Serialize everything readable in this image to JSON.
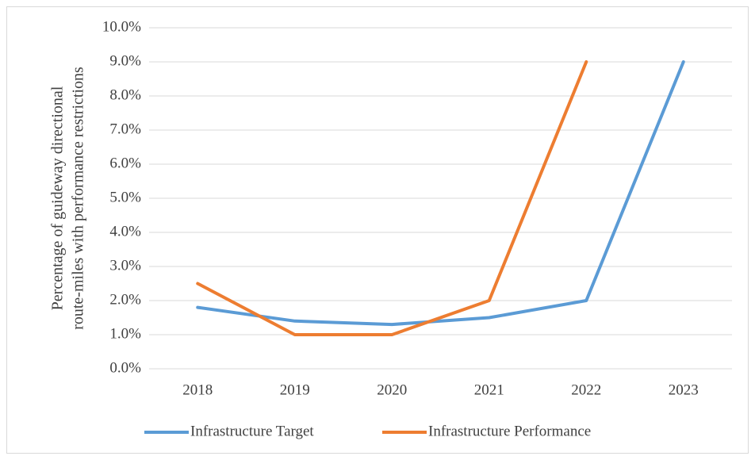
{
  "chart_data": {
    "type": "line",
    "ylabel": [
      "Percentage of guideway directional",
      "route-miles with performance restrictions"
    ],
    "categories": [
      "2018",
      "2019",
      "2020",
      "2021",
      "2022",
      "2023"
    ],
    "series": [
      {
        "name": "Infrastructure Target",
        "color": "#5b9bd5",
        "values": [
          1.8,
          1.4,
          1.3,
          1.5,
          2.0,
          9.0
        ]
      },
      {
        "name": "Infrastructure Performance",
        "color": "#ed7d31",
        "values": [
          2.5,
          1.0,
          1.0,
          2.0,
          9.0,
          null
        ]
      }
    ],
    "ylim": [
      0,
      10
    ],
    "yticks": [
      {
        "value": 0,
        "label": "0.0%"
      },
      {
        "value": 1,
        "label": "1.0%"
      },
      {
        "value": 2,
        "label": "2.0%"
      },
      {
        "value": 3,
        "label": "3.0%"
      },
      {
        "value": 4,
        "label": "4.0%"
      },
      {
        "value": 5,
        "label": "5.0%"
      },
      {
        "value": 6,
        "label": "6.0%"
      },
      {
        "value": 7,
        "label": "7.0%"
      },
      {
        "value": 8,
        "label": "8.0%"
      },
      {
        "value": 9,
        "label": "9.0%"
      },
      {
        "value": 10,
        "label": "10.0%"
      }
    ],
    "grid": true,
    "legend": "bottom"
  }
}
